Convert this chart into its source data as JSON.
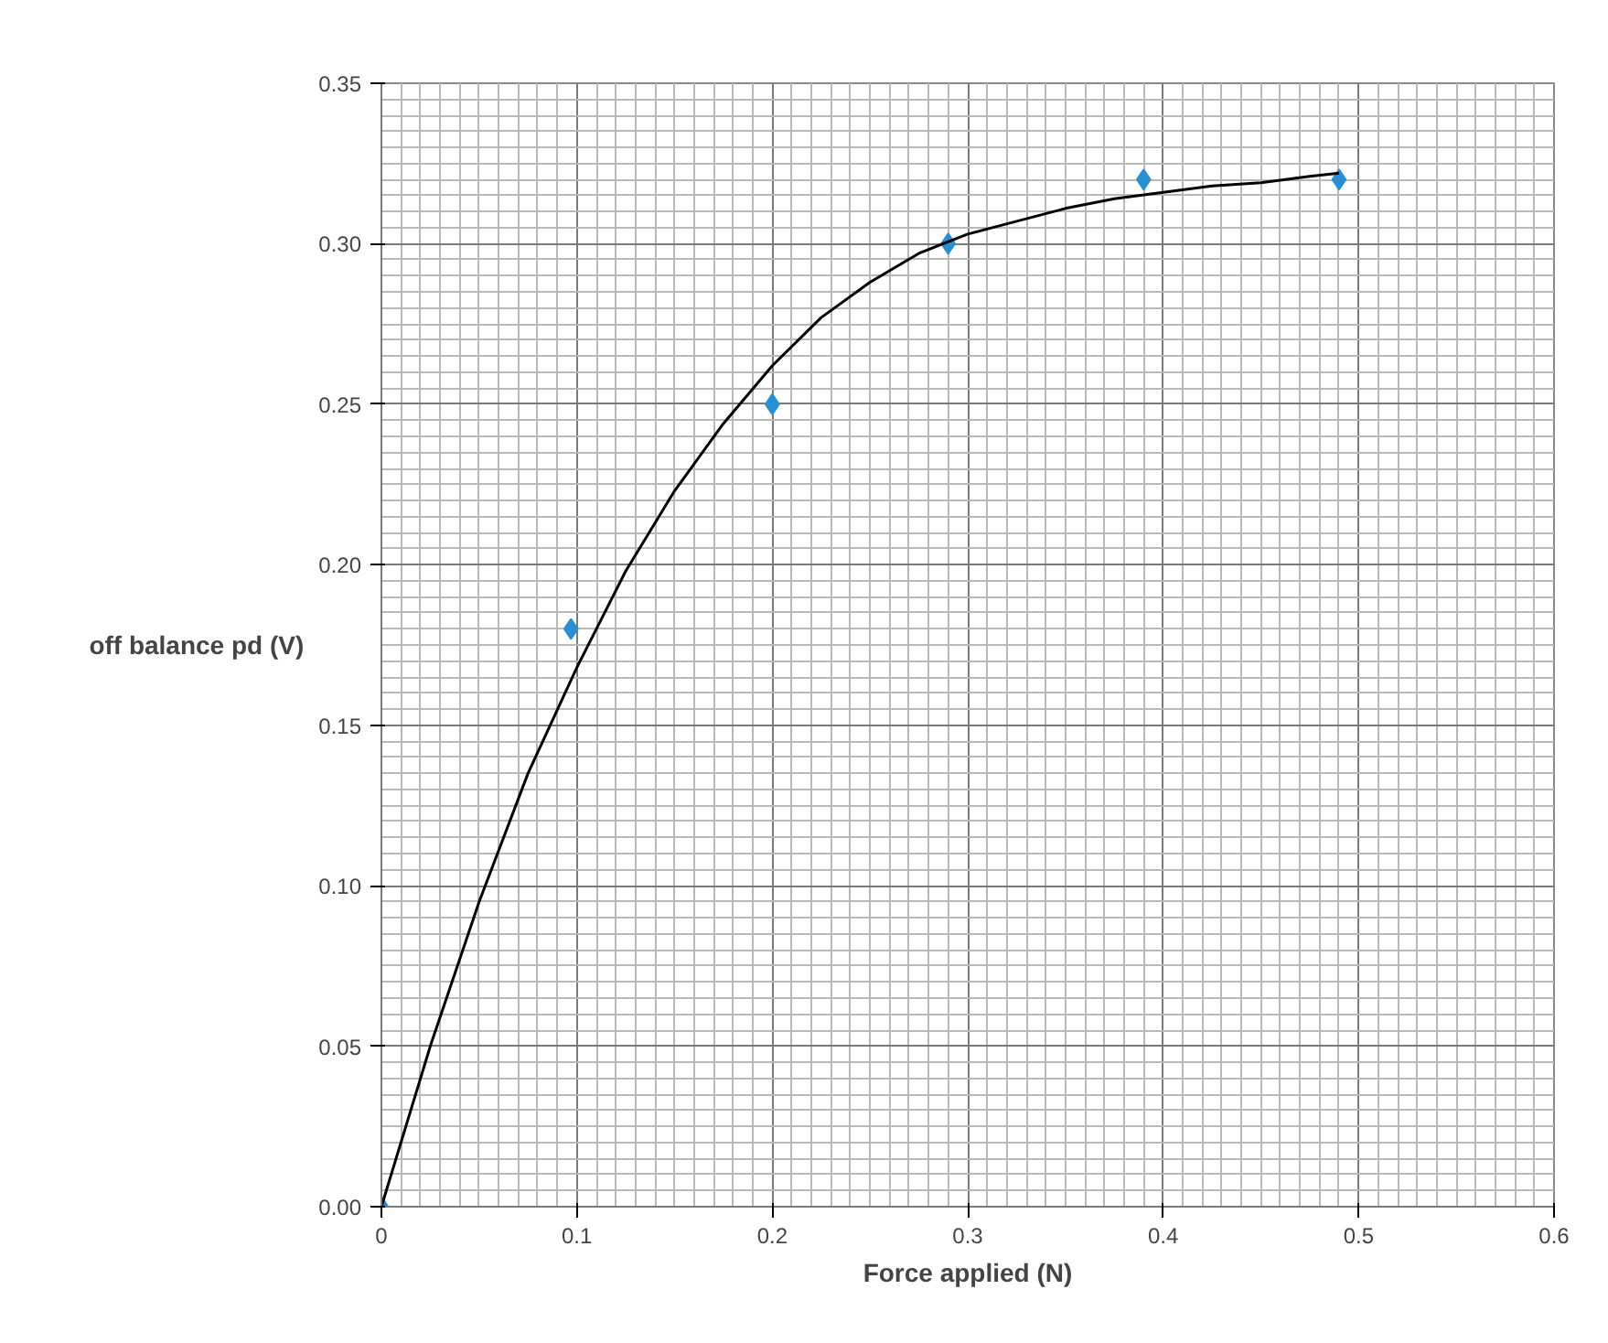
{
  "chart_data": {
    "type": "scatter",
    "xlabel": "Force applied (N)",
    "ylabel": "off balance pd (V)",
    "x": [
      0,
      0.097,
      0.2,
      0.29,
      0.39,
      0.49
    ],
    "series": [
      {
        "color": "#2a8fd0",
        "values": [
          0,
          0.18,
          0.25,
          0.3,
          0.32,
          0.32
        ],
        "marker": "diamond"
      },
      {
        "type": "line",
        "color": "#000000",
        "marker": "none",
        "x": [
          0,
          0.025,
          0.05,
          0.075,
          0.1,
          0.125,
          0.15,
          0.175,
          0.2,
          0.225,
          0.25,
          0.275,
          0.3,
          0.325,
          0.35,
          0.375,
          0.4,
          0.425,
          0.45,
          0.475,
          0.49
        ],
        "values": [
          0,
          0.05,
          0.095,
          0.135,
          0.168,
          0.198,
          0.223,
          0.244,
          0.262,
          0.277,
          0.288,
          0.297,
          0.303,
          0.307,
          0.311,
          0.314,
          0.316,
          0.318,
          0.319,
          0.321,
          0.322
        ]
      }
    ],
    "xlim": [
      0,
      0.6
    ],
    "xticks": [
      0,
      0.1,
      0.2,
      0.3,
      0.4,
      0.5,
      0.6
    ],
    "ylim": [
      0,
      0.35
    ],
    "yticks": [
      {
        "value": 0,
        "label": "0.00"
      },
      {
        "value": 0.05,
        "label": "0.05"
      },
      {
        "value": 0.1,
        "label": "0.10"
      },
      {
        "value": 0.15,
        "label": "0.15"
      },
      {
        "value": 0.2,
        "label": "0.20"
      },
      {
        "value": 0.25,
        "label": "0.25"
      },
      {
        "value": 0.3,
        "label": "0.30"
      },
      {
        "value": 0.35,
        "label": "0.35"
      }
    ],
    "grid": true
  }
}
